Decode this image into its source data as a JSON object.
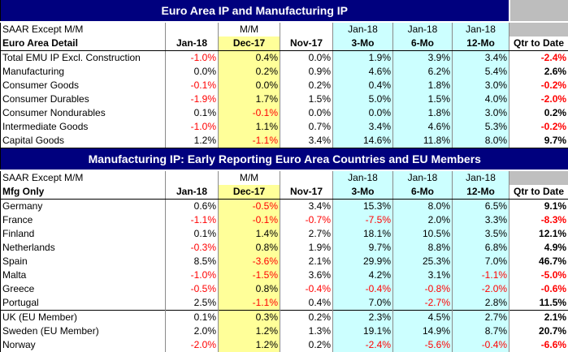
{
  "table1": {
    "title": "Euro Area IP and Manufacturing IP",
    "saar_label": "SAAR Except M/M",
    "mm_label": "M/M",
    "period_top": [
      "Jan-18",
      "Jan-18",
      "Jan-18"
    ],
    "detail_label": "Euro Area Detail",
    "columns": [
      "Jan-18",
      "Dec-17",
      "Nov-17",
      "3-Mo",
      "6-Mo",
      "12-Mo",
      "Qtr to Date"
    ],
    "rows": [
      {
        "label": "Total EMU IP Excl. Construction",
        "values": [
          "-1.0%",
          "0.4%",
          "0.0%",
          "1.9%",
          "3.9%",
          "3.4%",
          "-2.4%"
        ]
      },
      {
        "label": "Manufacturing",
        "values": [
          "0.0%",
          "0.2%",
          "0.9%",
          "4.6%",
          "6.2%",
          "5.4%",
          "2.6%"
        ]
      },
      {
        "label": "Consumer Goods",
        "values": [
          "-0.1%",
          "0.0%",
          "0.2%",
          "0.4%",
          "1.8%",
          "3.0%",
          "-0.2%"
        ]
      },
      {
        "label": "Consumer Durables",
        "values": [
          "-1.9%",
          "1.7%",
          "1.5%",
          "5.0%",
          "1.5%",
          "4.0%",
          "-2.0%"
        ]
      },
      {
        "label": "Consumer Nondurables",
        "values": [
          "0.1%",
          "-0.1%",
          "0.0%",
          "0.0%",
          "1.8%",
          "3.0%",
          "0.2%"
        ]
      },
      {
        "label": "Intermediate Goods",
        "values": [
          "-1.0%",
          "1.1%",
          "0.7%",
          "3.4%",
          "4.6%",
          "5.3%",
          "-0.2%"
        ]
      },
      {
        "label": "Capital Goods",
        "values": [
          "1.2%",
          "-1.1%",
          "3.4%",
          "14.6%",
          "11.8%",
          "8.0%",
          "9.7%"
        ]
      }
    ]
  },
  "table2": {
    "title": "Manufacturing IP: Early Reporting Euro Area Countries and EU Members",
    "saar_label": "SAAR Except M/M",
    "mm_label": "M/M",
    "period_top": [
      "Jan-18",
      "Jan-18",
      "Jan-18"
    ],
    "detail_label": "Mfg Only",
    "columns": [
      "Jan-18",
      "Dec-17",
      "Nov-17",
      "3-Mo",
      "6-Mo",
      "12-Mo",
      "Qtr to Date"
    ],
    "rows": [
      {
        "label": "Germany",
        "values": [
          "0.6%",
          "-0.5%",
          "3.4%",
          "15.3%",
          "8.0%",
          "6.5%",
          "9.1%"
        ]
      },
      {
        "label": "France",
        "values": [
          "-1.1%",
          "-0.1%",
          "-0.7%",
          "-7.5%",
          "2.0%",
          "3.3%",
          "-8.3%"
        ]
      },
      {
        "label": "Finland",
        "values": [
          "0.1%",
          "1.4%",
          "2.7%",
          "18.1%",
          "10.5%",
          "3.5%",
          "12.1%"
        ]
      },
      {
        "label": "Netherlands",
        "values": [
          "-0.3%",
          "0.8%",
          "1.9%",
          "9.7%",
          "8.8%",
          "6.8%",
          "4.9%"
        ]
      },
      {
        "label": "Spain",
        "values": [
          "8.5%",
          "-3.6%",
          "2.1%",
          "29.9%",
          "25.3%",
          "7.0%",
          "46.7%"
        ]
      },
      {
        "label": "Malta",
        "values": [
          "-1.0%",
          "-1.5%",
          "3.6%",
          "4.2%",
          "3.1%",
          "-1.1%",
          "-5.0%"
        ]
      },
      {
        "label": "Greece",
        "values": [
          "-0.5%",
          "0.8%",
          "-0.4%",
          "-0.4%",
          "-0.8%",
          "-2.0%",
          "-0.6%"
        ]
      },
      {
        "label": "Portugal",
        "values": [
          "2.5%",
          "-1.1%",
          "0.4%",
          "7.0%",
          "-2.7%",
          "2.8%",
          "11.5%"
        ]
      }
    ],
    "members": [
      {
        "label": "UK (EU Member)",
        "values": [
          "0.1%",
          "0.3%",
          "0.2%",
          "2.3%",
          "4.5%",
          "2.7%",
          "2.1%"
        ]
      },
      {
        "label": "Sweden (EU Member)",
        "values": [
          "2.0%",
          "1.2%",
          "1.3%",
          "19.1%",
          "14.9%",
          "8.7%",
          "20.7%"
        ]
      },
      {
        "label": "Norway",
        "values": [
          "-2.0%",
          "1.2%",
          "0.2%",
          "-2.4%",
          "-5.6%",
          "-0.4%",
          "-6.6%"
        ]
      }
    ]
  },
  "colors": {
    "title_bg": "#00007e",
    "title_text": "#ffffff",
    "cyan": "#ccffff",
    "yellow": "#ffff99",
    "gray": "#bfbfbf",
    "negative": "#ff0000"
  }
}
